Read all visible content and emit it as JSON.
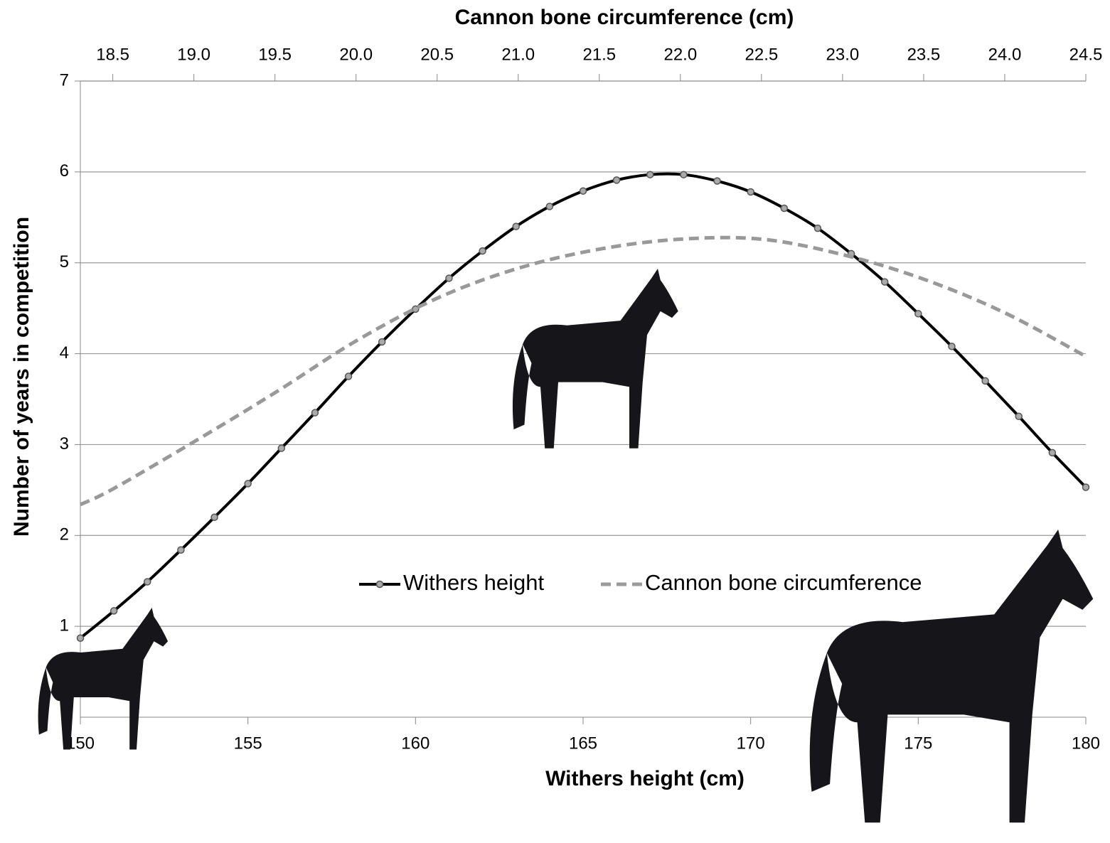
{
  "chart_data": {
    "type": "line",
    "xlabel": "Withers height (cm)",
    "x2label": "Cannon bone circumference (cm)",
    "ylabel": "Number of years in competition",
    "xlim": [
      150,
      180
    ],
    "xticks": [
      150,
      155,
      160,
      165,
      170,
      175,
      180
    ],
    "x2lim": [
      18.3,
      24.5
    ],
    "x2ticks": [
      {
        "value": 18.5,
        "label": "18.5"
      },
      {
        "value": 19.0,
        "label": "19.0"
      },
      {
        "value": 19.5,
        "label": "19.5"
      },
      {
        "value": 20.0,
        "label": "20.0"
      },
      {
        "value": 20.5,
        "label": "20.5"
      },
      {
        "value": 21.0,
        "label": "21.0"
      },
      {
        "value": 21.5,
        "label": "21.5"
      },
      {
        "value": 22.0,
        "label": "22.0"
      },
      {
        "value": 22.5,
        "label": "22.5"
      },
      {
        "value": 23.0,
        "label": "23.0"
      },
      {
        "value": 23.5,
        "label": "23.5"
      },
      {
        "value": 24.0,
        "label": "24.0"
      },
      {
        "value": 24.5,
        "label": "24.5"
      }
    ],
    "ylim": [
      0,
      7
    ],
    "yticks": [
      1,
      2,
      3,
      4,
      5,
      6,
      7
    ],
    "grid": true,
    "series": [
      {
        "name": "Withers height",
        "color": "#000000",
        "markers": true,
        "dashed": false,
        "x": [
          150,
          151,
          152,
          153,
          154,
          155,
          156,
          157,
          158,
          159,
          160,
          161,
          162,
          163,
          164,
          165,
          166,
          167,
          168,
          169,
          170,
          171,
          172,
          173,
          174,
          175,
          176,
          177,
          178,
          179,
          180
        ],
        "values": [
          0.87,
          1.17,
          1.49,
          1.84,
          2.2,
          2.57,
          2.96,
          3.35,
          3.75,
          4.13,
          4.49,
          4.83,
          5.13,
          5.4,
          5.62,
          5.79,
          5.91,
          5.97,
          5.97,
          5.9,
          5.78,
          5.6,
          5.38,
          5.1,
          4.79,
          4.44,
          4.08,
          3.7,
          3.31,
          2.91,
          2.53
        ]
      },
      {
        "name": "Cannon bone circumference",
        "color": "#999999",
        "markers": false,
        "dashed": true,
        "axis": "x2",
        "x": [
          18.3,
          18.5,
          19.0,
          19.5,
          20.0,
          20.5,
          21.0,
          21.5,
          22.0,
          22.5,
          23.0,
          23.5,
          24.0,
          24.5
        ],
        "values": [
          2.34,
          2.51,
          3.03,
          3.57,
          4.14,
          4.61,
          4.94,
          5.15,
          5.26,
          5.26,
          5.09,
          4.82,
          4.45,
          3.97
        ]
      }
    ]
  }
}
